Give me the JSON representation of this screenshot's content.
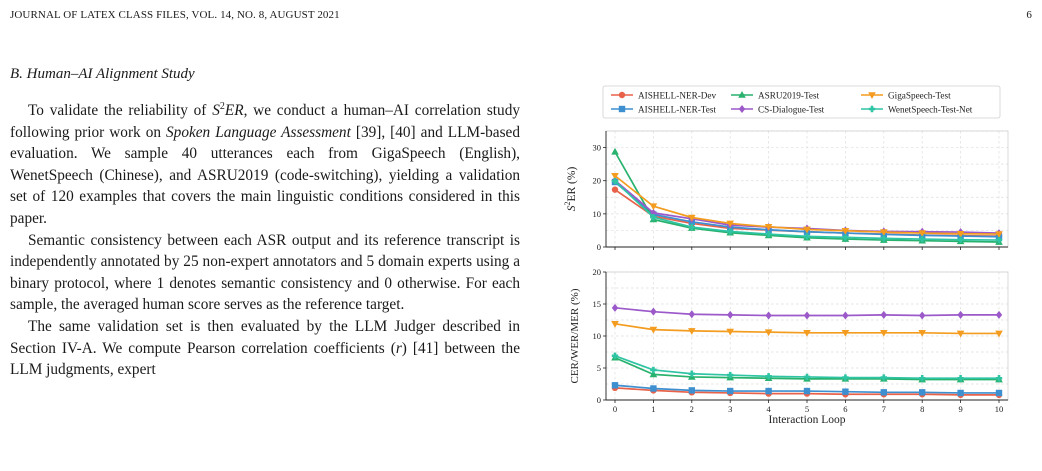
{
  "header": {
    "left": "JOURNAL OF LATEX CLASS FILES, VOL. 14, NO. 8, AUGUST 2021",
    "page_number": "6"
  },
  "section": {
    "heading": "B.  Human–AI Alignment Study"
  },
  "paragraphs": {
    "p1": {
      "a": "To validate the reliability of ",
      "metric_base": "S",
      "metric_sup": "2",
      "metric_tail": "ER",
      "b": ", we conduct a human–AI correlation study following prior work on ",
      "emph": "Spoken Language Assessment",
      "c": " [39], [40] and LLM-based evaluation. We sample 40 utterances each from GigaSpeech (English), WenetSpeech (Chinese), and ASRU2019 (code-switching), yielding a validation set of 120 examples that covers the main linguistic conditions considered in this paper."
    },
    "p2": "Semantic consistency between each ASR output and its reference transcript is independently annotated by 25 non-expert annotators and 5 domain experts using a binary protocol, where 1 denotes semantic consistency and 0 otherwise. For each sample, the averaged human score serves as the reference target.",
    "p3": {
      "a": "The same validation set is then evaluated by the LLM Judger described in Section IV-A. We compute Pearson correlation coefficients (",
      "var": "r",
      "b": ") [41] between the LLM judgments, expert"
    }
  },
  "chart_data": [
    {
      "type": "line",
      "xlabel": "",
      "ylabel_base": "S",
      "ylabel_sup": "2",
      "ylabel_tail": "ER (%)",
      "ylim": [
        0,
        35
      ],
      "yticks": [
        0,
        10,
        20,
        30
      ],
      "x": [
        0,
        1,
        2,
        3,
        4,
        5,
        6,
        7,
        8,
        9,
        10
      ],
      "grid": true,
      "legend_position": "top",
      "series": [
        {
          "name": "AISHELL-NER-Dev",
          "color": "#e8624a",
          "marker": "circle",
          "values": [
            17.3,
            9.3,
            7.1,
            5.6,
            5.1,
            4.6,
            4.2,
            3.9,
            3.6,
            3.4,
            3.3
          ]
        },
        {
          "name": "AISHELL-NER-Test",
          "color": "#3d8fd0",
          "marker": "square",
          "values": [
            19.6,
            9.8,
            7.6,
            6.0,
            5.2,
            4.6,
            4.2,
            3.8,
            3.5,
            3.3,
            3.1
          ]
        },
        {
          "name": "ASRU2019-Test",
          "color": "#28b26e",
          "marker": "triangle-up",
          "values": [
            28.7,
            8.3,
            5.7,
            4.3,
            3.5,
            2.8,
            2.4,
            2.1,
            1.9,
            1.7,
            1.5
          ]
        },
        {
          "name": "CS-Dialogue-Test",
          "color": "#9b59c9",
          "marker": "diamond",
          "values": [
            20.1,
            10.3,
            8.5,
            6.6,
            6.0,
            5.6,
            5.0,
            4.7,
            4.6,
            4.5,
            4.2
          ]
        },
        {
          "name": "GigaSpeech-Test",
          "color": "#f39c1f",
          "marker": "triangle-down",
          "values": [
            21.5,
            12.3,
            8.9,
            7.1,
            6.1,
            5.3,
            4.9,
            4.5,
            4.2,
            4.0,
            3.9
          ]
        },
        {
          "name": "WenetSpeech-Test-Net",
          "color": "#2fc4a4",
          "marker": "plus",
          "values": [
            19.9,
            9.0,
            6.0,
            4.7,
            3.9,
            3.2,
            2.9,
            2.6,
            2.4,
            2.2,
            2.1
          ]
        }
      ]
    },
    {
      "type": "line",
      "xlabel": "Interaction Loop",
      "ylabel": "CER/WER/MER (%)",
      "ylim": [
        0,
        20
      ],
      "yticks": [
        0,
        5,
        10,
        15,
        20
      ],
      "x": [
        0,
        1,
        2,
        3,
        4,
        5,
        6,
        7,
        8,
        9,
        10
      ],
      "xticks": [
        "0",
        "1",
        "2",
        "3",
        "4",
        "5",
        "6",
        "7",
        "8",
        "9",
        "10"
      ],
      "grid": true,
      "series": [
        {
          "name": "AISHELL-NER-Dev",
          "color": "#e8624a",
          "marker": "circle",
          "values": [
            1.9,
            1.5,
            1.2,
            1.1,
            1.0,
            1.0,
            0.9,
            0.9,
            0.9,
            0.8,
            0.8
          ]
        },
        {
          "name": "AISHELL-NER-Test",
          "color": "#3d8fd0",
          "marker": "square",
          "values": [
            2.3,
            1.8,
            1.5,
            1.4,
            1.4,
            1.4,
            1.3,
            1.2,
            1.2,
            1.1,
            1.1
          ]
        },
        {
          "name": "ASRU2019-Test",
          "color": "#28b26e",
          "marker": "triangle-up",
          "values": [
            6.6,
            4.0,
            3.6,
            3.5,
            3.4,
            3.3,
            3.3,
            3.3,
            3.2,
            3.2,
            3.2
          ]
        },
        {
          "name": "CS-Dialogue-Test",
          "color": "#9b59c9",
          "marker": "diamond",
          "values": [
            14.4,
            13.8,
            13.4,
            13.3,
            13.2,
            13.2,
            13.2,
            13.3,
            13.2,
            13.3,
            13.3
          ]
        },
        {
          "name": "GigaSpeech-Test",
          "color": "#f39c1f",
          "marker": "triangle-down",
          "values": [
            11.9,
            11.0,
            10.8,
            10.7,
            10.6,
            10.5,
            10.5,
            10.5,
            10.5,
            10.4,
            10.4
          ]
        },
        {
          "name": "WenetSpeech-Test-Net",
          "color": "#2fc4a4",
          "marker": "plus",
          "values": [
            6.9,
            4.7,
            4.1,
            3.9,
            3.7,
            3.6,
            3.5,
            3.5,
            3.4,
            3.4,
            3.4
          ]
        }
      ]
    }
  ]
}
